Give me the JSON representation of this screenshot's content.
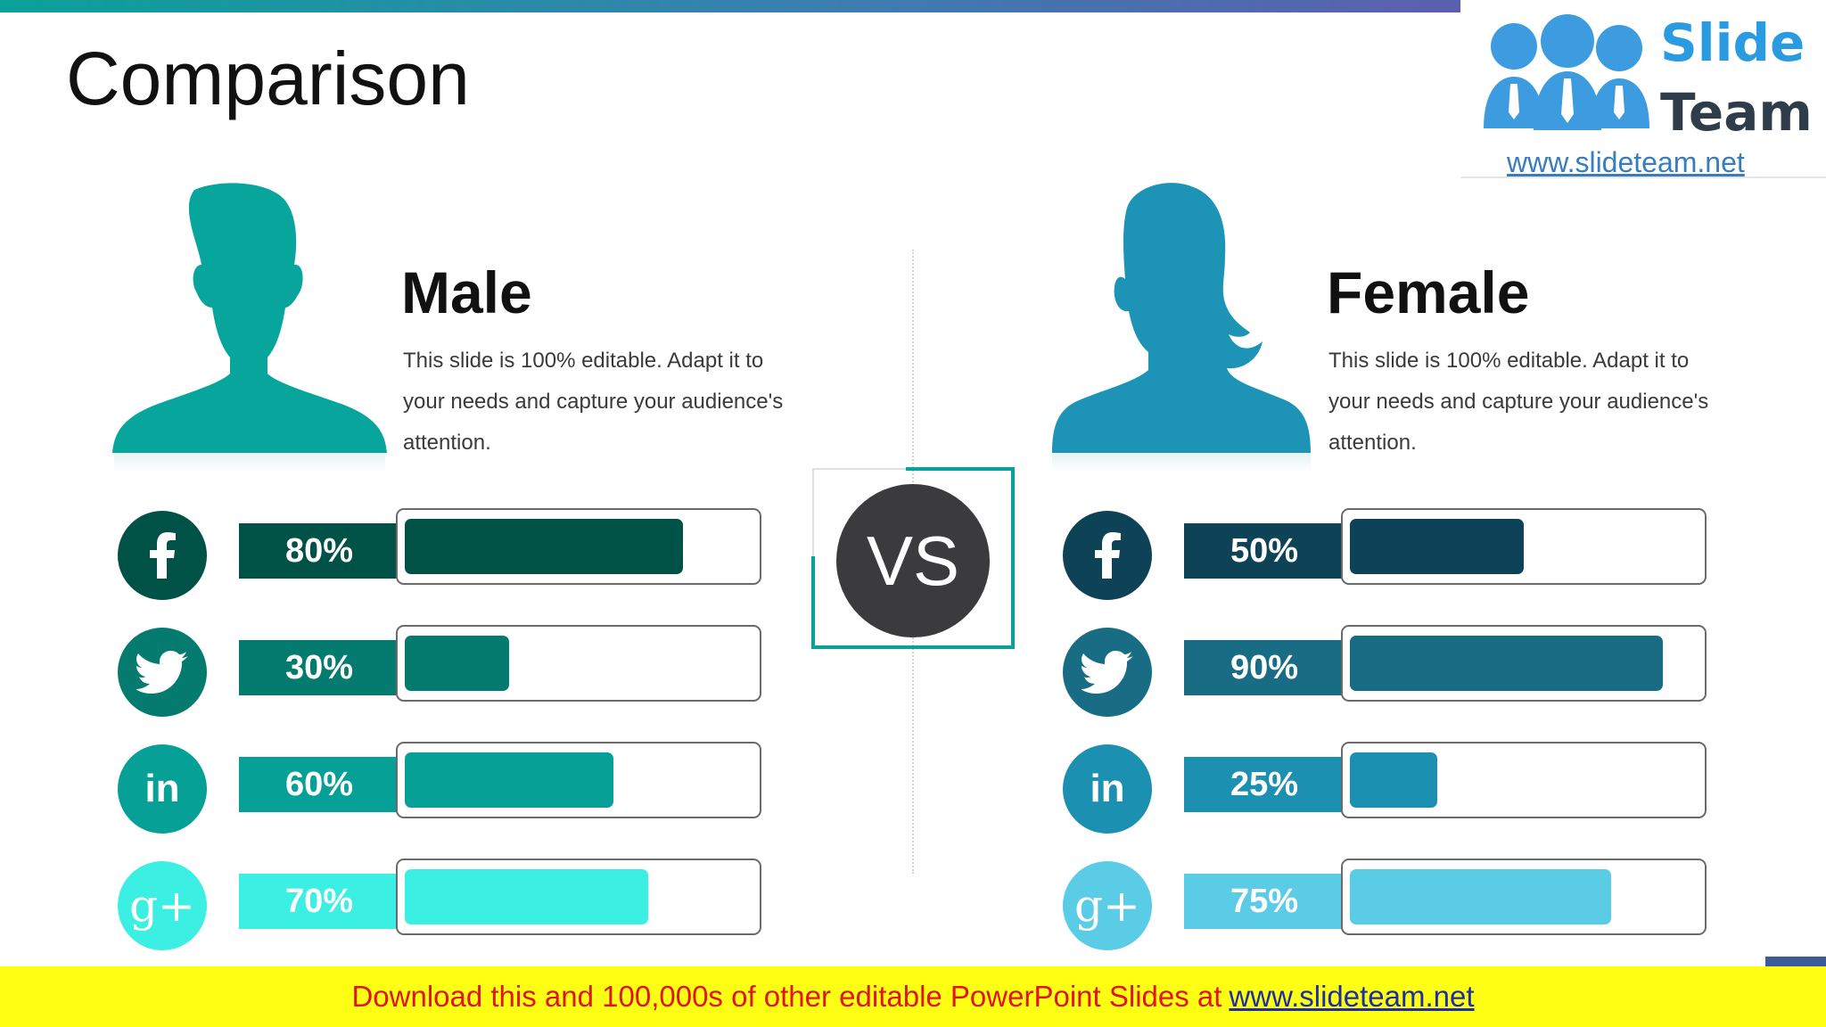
{
  "slide": {
    "title": "Comparison"
  },
  "logo": {
    "word1": "Slide",
    "word2": "Team",
    "url": "www.slideteam.net"
  },
  "vs_label": "VS",
  "colors": {
    "facebook_male": "#005247",
    "twitter_male": "#057a6e",
    "linkedin_male": "#07a097",
    "gplus_male": "#3bf0e2",
    "facebook_female": "#0e4257",
    "twitter_female": "#186d85",
    "linkedin_female": "#1c90b0",
    "gplus_female": "#5bcce6",
    "male_avatar": "#07a59b",
    "female_avatar": "#1d94b6"
  },
  "male": {
    "title": "Male",
    "desc": "This slide is 100% editable. Adapt it to your needs and capture your audience's attention.",
    "rows": [
      {
        "icon": "facebook-icon",
        "pct_label": "80%"
      },
      {
        "icon": "twitter-icon",
        "pct_label": "30%"
      },
      {
        "icon": "linkedin-icon",
        "icon_text": "in",
        "pct_label": "60%"
      },
      {
        "icon": "google-plus-icon",
        "icon_text": "g+",
        "pct_label": "70%"
      }
    ]
  },
  "female": {
    "title": "Female",
    "desc": "This slide is 100% editable. Adapt it to your needs and capture your audience's attention.",
    "rows": [
      {
        "icon": "facebook-icon",
        "pct_label": "50%"
      },
      {
        "icon": "twitter-icon",
        "pct_label": "90%"
      },
      {
        "icon": "linkedin-icon",
        "icon_text": "in",
        "pct_label": "25%"
      },
      {
        "icon": "google-plus-icon",
        "icon_text": "g+",
        "pct_label": "75%"
      }
    ]
  },
  "chart_data": {
    "type": "bar",
    "title": "Comparison",
    "categories": [
      "Facebook",
      "Twitter",
      "LinkedIn",
      "Google+"
    ],
    "series": [
      {
        "name": "Male",
        "values": [
          80,
          30,
          60,
          70
        ]
      },
      {
        "name": "Female",
        "values": [
          50,
          90,
          25,
          75
        ]
      }
    ],
    "ylim": [
      0,
      100
    ]
  },
  "footer": {
    "text": "Download this and 100,000s of other editable PowerPoint Slides at",
    "link": "www.slideteam.net"
  }
}
